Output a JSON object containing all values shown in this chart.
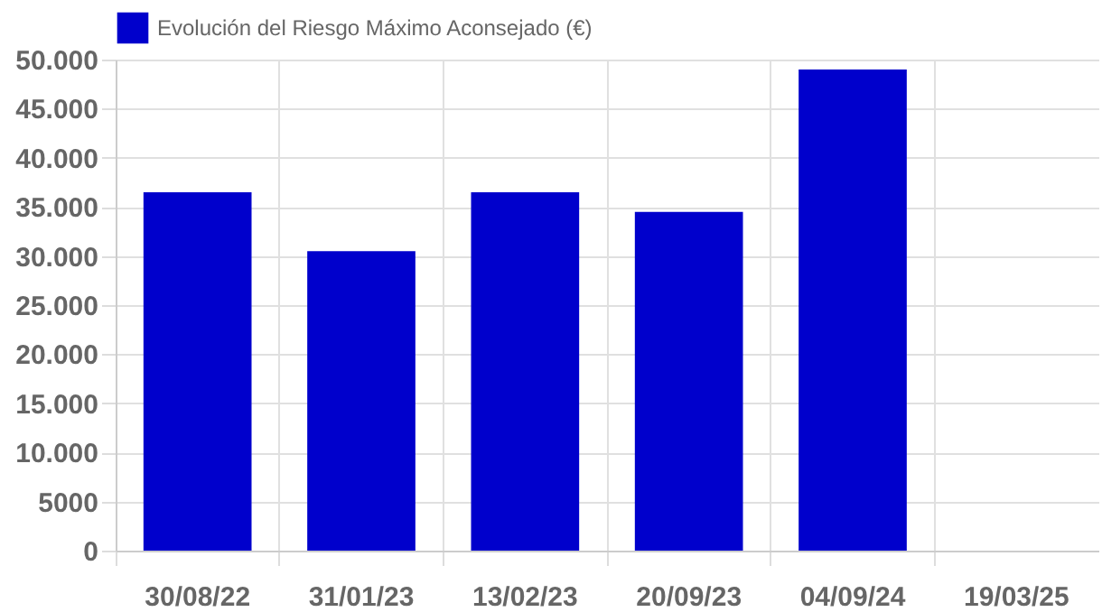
{
  "chart_data": {
    "type": "bar",
    "categories": [
      "30/08/22",
      "31/01/23",
      "13/02/23",
      "20/09/23",
      "04/09/24",
      "19/03/25"
    ],
    "series": [
      {
        "name": "Evolución del Riesgo Máximo Aconsejado (€)",
        "color": "#0000cc",
        "values": [
          36500,
          30500,
          36500,
          34500,
          49000,
          null
        ]
      }
    ],
    "ylim": [
      0,
      50000
    ],
    "yticks": [
      0,
      5000,
      {
        "value": 10000,
        "label": "10.000"
      },
      {
        "value": 15000,
        "label": "15.000"
      },
      {
        "value": 20000,
        "label": "20.000"
      },
      {
        "value": 25000,
        "label": "25.000"
      },
      {
        "value": 30000,
        "label": "30.000"
      },
      {
        "value": 35000,
        "label": "35.000"
      },
      {
        "value": 40000,
        "label": "40.000"
      },
      {
        "value": 45000,
        "label": "45.000"
      },
      {
        "value": 50000,
        "label": "50.000"
      }
    ],
    "grid": true,
    "legend": "top"
  }
}
